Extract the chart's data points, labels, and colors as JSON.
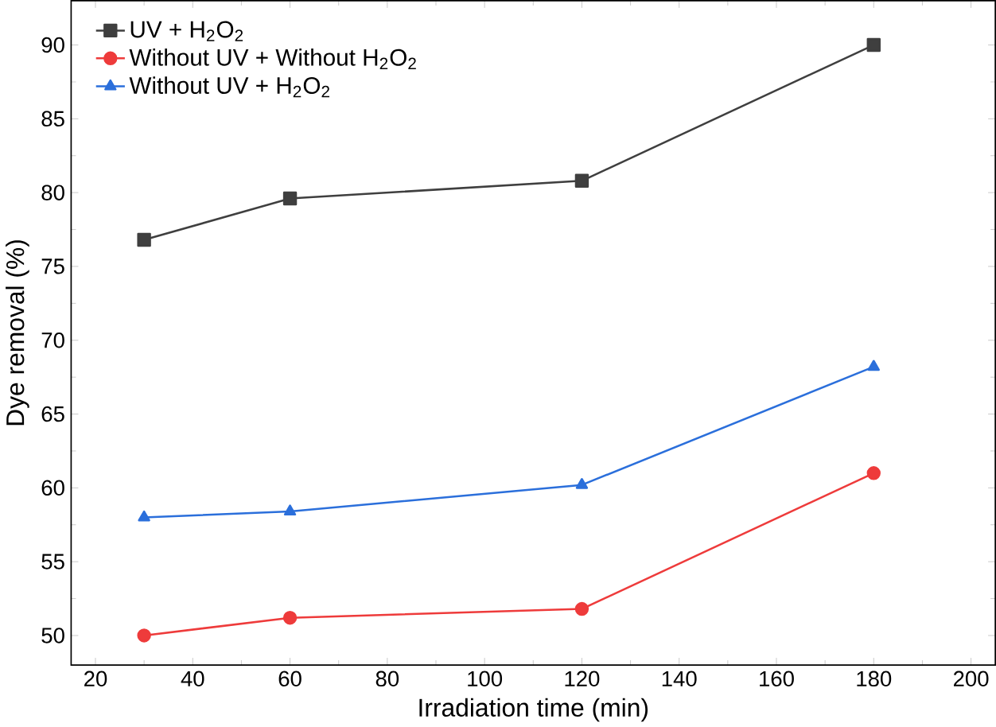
{
  "chart_data": {
    "type": "line",
    "xlabel": "Irradiation time (min)",
    "ylabel": "Dye removal (%)",
    "x": [
      30,
      60,
      120,
      180
    ],
    "series": [
      {
        "name": "UV + H$_{2}$O$_{2}$",
        "color": "#3f3f3f",
        "marker": "square",
        "values": [
          76.8,
          79.6,
          80.8,
          90.0
        ]
      },
      {
        "name": "Without UV + Without H$_{2}$O$_{2}$",
        "color": "#ee3b3b",
        "marker": "circle",
        "values": [
          50.0,
          51.2,
          51.8,
          61.0
        ]
      },
      {
        "name": "Without UV + H$_{2}$O$_{2}$",
        "color": "#2b6fdb",
        "marker": "triangle",
        "values": [
          58.0,
          58.4,
          60.2,
          68.2
        ]
      }
    ],
    "xlim": [
      15,
      205
    ],
    "ylim": [
      48,
      93
    ],
    "xticks": [
      20,
      40,
      60,
      80,
      100,
      120,
      140,
      160,
      180,
      200
    ],
    "yticks": [
      50,
      55,
      60,
      65,
      70,
      75,
      80,
      85,
      90
    ],
    "legend": "top left",
    "grid": false,
    "line_style": "solid"
  }
}
